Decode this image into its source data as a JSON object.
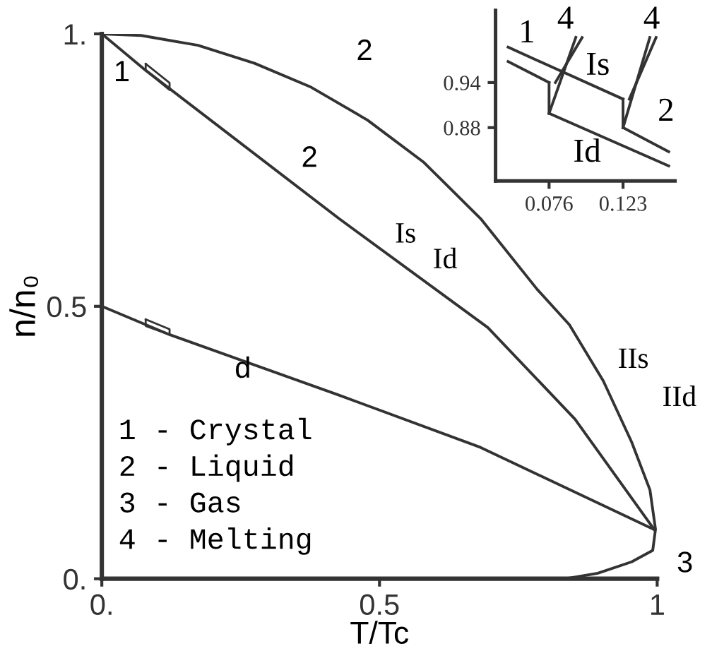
{
  "chart_data": [
    {
      "type": "line",
      "xlabel": "T/Tc",
      "ylabel": "n/n₀",
      "xlim": [
        0,
        1
      ],
      "ylim": [
        0,
        1
      ],
      "xticks": [
        {
          "value": 0,
          "label": "0."
        },
        0.5,
        1
      ],
      "yticks": [
        {
          "value": 0,
          "label": "0."
        },
        0.5,
        {
          "value": 1,
          "label": "1."
        }
      ],
      "grid": false,
      "marker": "none",
      "line_style": "solid",
      "series": [
        {
          "color": "#333333",
          "x": [
            0,
            0.071,
            0.173,
            0.275,
            0.377,
            0.478,
            0.58,
            0.682,
            0.784,
            0.842,
            0.903,
            0.954,
            0.987,
            0.997,
            0.992,
            0.954,
            0.893,
            0.835
          ],
          "values": [
            1.0,
            0.997,
            0.979,
            0.946,
            0.902,
            0.842,
            0.764,
            0.661,
            0.531,
            0.466,
            0.363,
            0.251,
            0.163,
            0.091,
            0.052,
            0.031,
            0.01,
            0.0
          ]
        },
        {
          "color": "#333333",
          "x": [
            0,
            0.079,
            0.427,
            0.695,
            0.852,
            0.995
          ],
          "values": [
            1.0,
            0.933,
            0.661,
            0.461,
            0.293,
            0.09
          ]
        },
        {
          "color": "#333333",
          "x": [
            0,
            0.122,
            0.427,
            0.682,
            0.995
          ],
          "values": [
            0.5,
            0.448,
            0.337,
            0.241,
            0.09
          ]
        }
      ],
      "annotations": [
        "1",
        "2",
        "2",
        "Is",
        "Id",
        "d",
        "IIs",
        "IId",
        "3",
        "1 - Crystal",
        "2 - Liquid",
        "3 - Gas",
        "4 - Melting"
      ]
    },
    {
      "type": "line",
      "xlim": [
        0.042,
        0.156
      ],
      "ylim": [
        0.809,
        1.036
      ],
      "xticks": [
        0.076,
        0.123
      ],
      "yticks": [
        0.94,
        0.88
      ],
      "grid": false,
      "marker": "none",
      "line_style": "solid",
      "series": [
        {
          "color": "#333333",
          "x": [
            0.05,
            0.123
          ],
          "values": [
            0.987,
            0.918
          ]
        },
        {
          "color": "#333333",
          "x": [
            0.123,
            0.152
          ],
          "values": [
            0.88,
            0.848
          ]
        },
        {
          "color": "#333333",
          "x": [
            0.05,
            0.076
          ],
          "values": [
            0.968,
            0.94
          ]
        },
        {
          "color": "#333333",
          "x": [
            0.076,
            0.152
          ],
          "values": [
            0.899,
            0.829
          ]
        },
        {
          "color": "#333333",
          "x": [
            0.076,
            0.076
          ],
          "values": [
            0.94,
            0.899
          ]
        },
        {
          "color": "#333333",
          "x": [
            0.123,
            0.123
          ],
          "values": [
            0.918,
            0.88
          ]
        },
        {
          "color": "#333333",
          "x": [
            0.076,
            0.093
          ],
          "values": [
            0.899,
            1.0
          ]
        },
        {
          "color": "#333333",
          "x": [
            0.08,
            0.097
          ],
          "values": [
            0.94,
            1.0
          ]
        },
        {
          "color": "#333333",
          "x": [
            0.123,
            0.14
          ],
          "values": [
            0.88,
            1.0
          ]
        },
        {
          "color": "#333333",
          "x": [
            0.127,
            0.144
          ],
          "values": [
            0.918,
            1.0
          ]
        }
      ],
      "annotations": [
        "1",
        "4",
        "4",
        "Is",
        "2",
        "Id"
      ]
    }
  ]
}
